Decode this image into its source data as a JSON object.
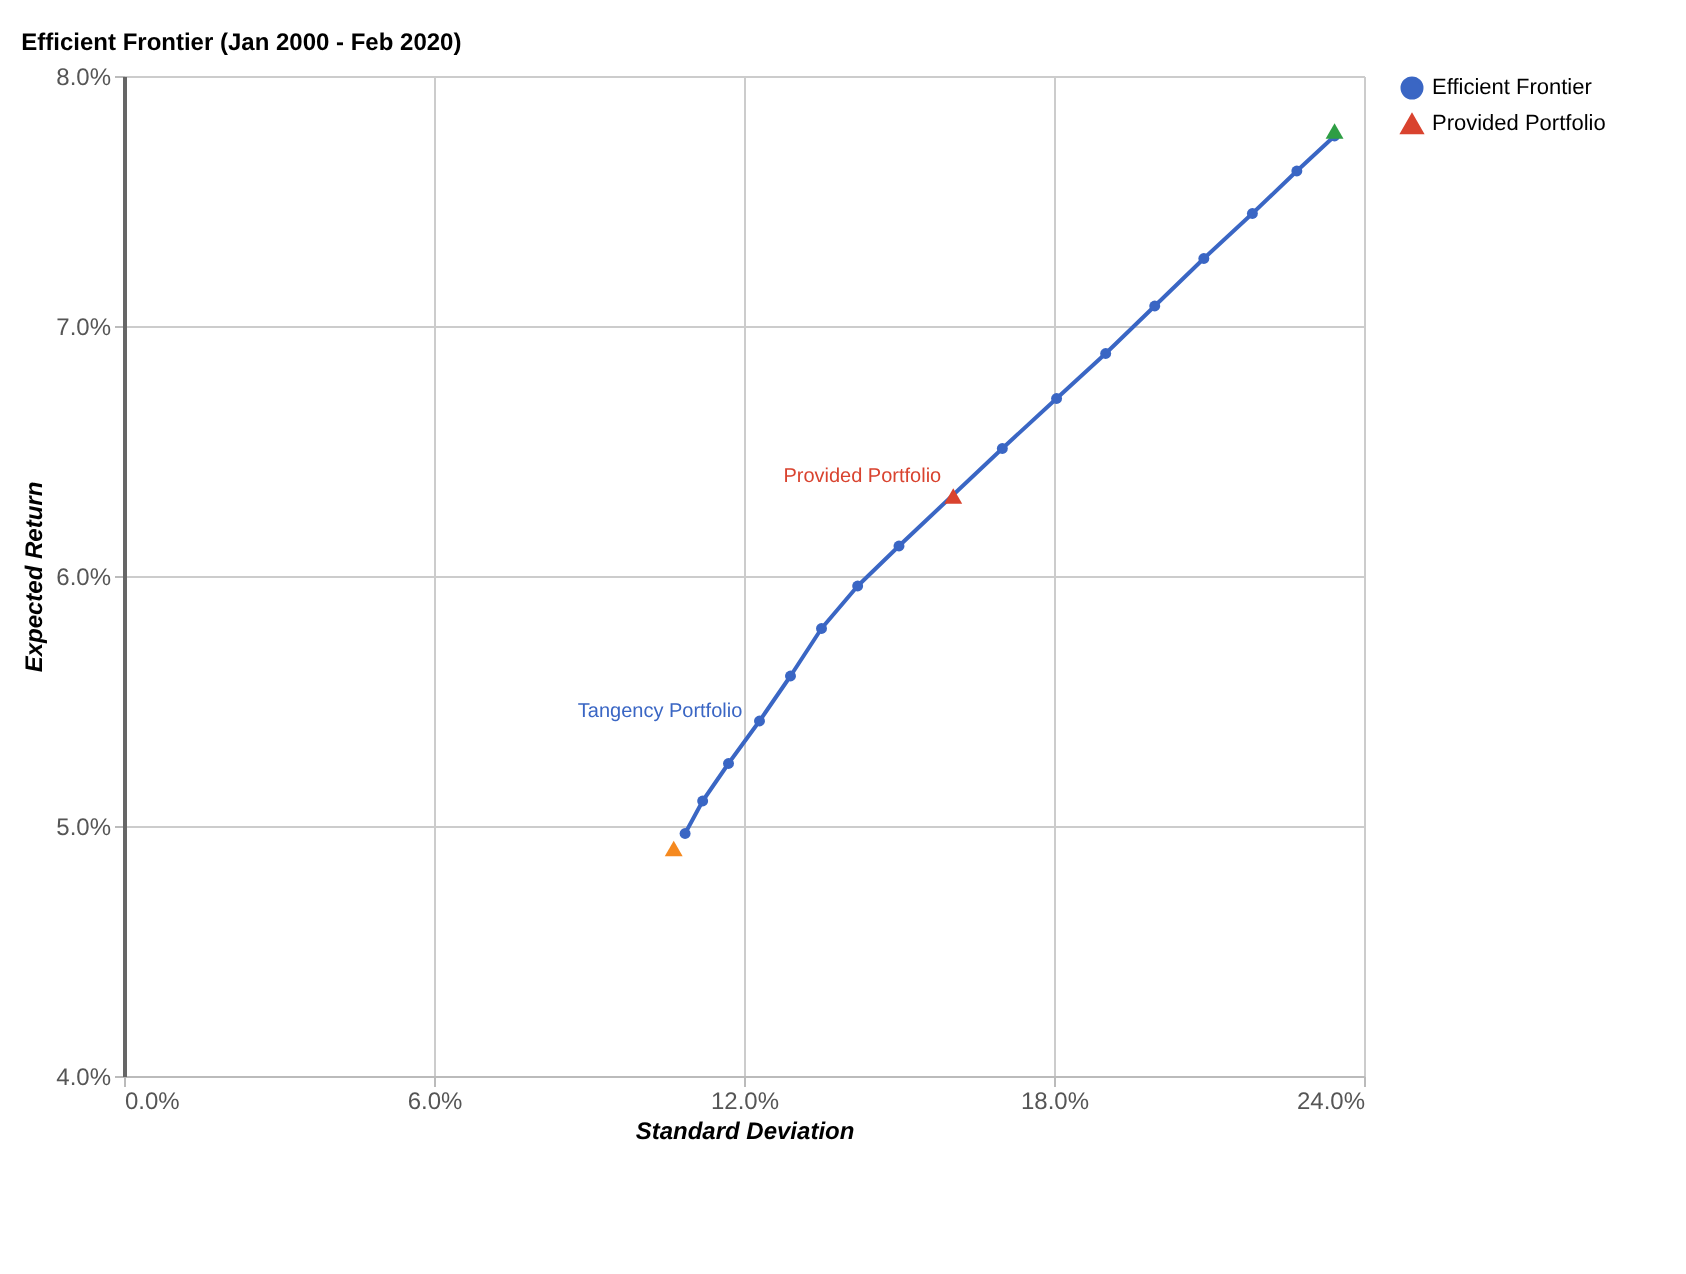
{
  "chart_data": {
    "type": "scatter",
    "title": "Efficient Frontier (Jan 2000 - Feb 2020)",
    "xlabel": "Standard Deviation",
    "ylabel": "Expected Return",
    "xlim": [
      0,
      24
    ],
    "ylim": [
      4,
      8
    ],
    "xticks": [
      {
        "value": 0,
        "label": "0.0%"
      },
      {
        "value": 6,
        "label": "6.0%"
      },
      {
        "value": 12,
        "label": "12.0%"
      },
      {
        "value": 18,
        "label": "18.0%"
      },
      {
        "value": 24,
        "label": "24.0%"
      }
    ],
    "yticks": [
      {
        "value": 4,
        "label": "4.0%"
      },
      {
        "value": 5,
        "label": "5.0%"
      },
      {
        "value": 6,
        "label": "6.0%"
      },
      {
        "value": 7,
        "label": "7.0%"
      },
      {
        "value": 8,
        "label": "8.0%"
      }
    ],
    "grid": true,
    "legend": "top right",
    "series": [
      {
        "name": "Efficient Frontier",
        "type": "line",
        "marker": "circle",
        "line_style": "solid",
        "color": "#3a66c4",
        "x": [
          10.86,
          11.2,
          11.7,
          12.3,
          12.9,
          13.5,
          14.2,
          15.0,
          17.0,
          18.05,
          19.0,
          19.95,
          20.9,
          21.84,
          22.7,
          23.43
        ],
        "values": [
          4.97,
          5.1,
          5.25,
          5.42,
          5.6,
          5.79,
          5.96,
          6.12,
          6.51,
          6.71,
          6.89,
          7.08,
          7.27,
          7.45,
          7.62,
          7.76
        ]
      },
      {
        "name": "Provided Portfolio",
        "marker": "triangle",
        "color": "#d9432f",
        "x": [
          16.05
        ],
        "values": [
          6.32
        ]
      },
      {
        "marker": "triangle",
        "color": "#f5891f",
        "x": [
          10.64
        ],
        "values": [
          4.91
        ]
      },
      {
        "marker": "triangle",
        "color": "#2e9e44",
        "x": [
          23.43
        ],
        "values": [
          7.78
        ]
      }
    ],
    "annotations": [
      {
        "text": "Provided Portfolio",
        "x": 16.05,
        "y": 6.32
      },
      {
        "text": "Tangency Portfolio",
        "x": 12.2,
        "y": 5.38
      }
    ]
  }
}
